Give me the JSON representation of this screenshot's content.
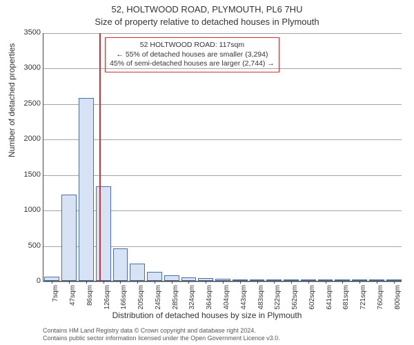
{
  "title_line1": "52, HOLTWOOD ROAD, PLYMOUTH, PL6 7HU",
  "title_line2": "Size of property relative to detached houses in Plymouth",
  "chart": {
    "type": "histogram",
    "background_color": "#ffffff",
    "bar_fill": "#d7e3f4",
    "bar_border": "#4a6fa5",
    "grid_color": "#666666",
    "axis_color": "#444444",
    "ylabel": "Number of detached properties",
    "xlabel": "Distribution of detached houses by size in Plymouth",
    "ylim": [
      0,
      3500
    ],
    "ytick_step": 500,
    "yticks": [
      0,
      500,
      1000,
      1500,
      2000,
      2500,
      3000,
      3500
    ],
    "x_categories_sqm": [
      7,
      47,
      86,
      126,
      166,
      205,
      245,
      285,
      324,
      364,
      404,
      443,
      483,
      522,
      562,
      602,
      641,
      681,
      721,
      760,
      800
    ],
    "x_tick_unit": "sqm",
    "values": [
      55,
      1220,
      2580,
      1330,
      460,
      240,
      130,
      75,
      50,
      40,
      30,
      22,
      15,
      10,
      7,
      5,
      4,
      3,
      2,
      2,
      1
    ],
    "bar_width_ratio": 0.88,
    "marker": {
      "value_sqm": 117,
      "color": "#d03030"
    },
    "label_fontsize": 12,
    "tick_fontsize": 11
  },
  "annotation": {
    "line1": "52 HOLTWOOD ROAD: 117sqm",
    "line2": "← 55% of detached houses are smaller (3,294)",
    "line3": "45% of semi-detached houses are larger (2,744) →",
    "border_color": "#d03030",
    "fontsize": 10.5
  },
  "attribution": {
    "line1": "Contains HM Land Registry data © Crown copyright and database right 2024.",
    "line2": "Contains public sector information licensed under the Open Government Licence v3.0."
  }
}
